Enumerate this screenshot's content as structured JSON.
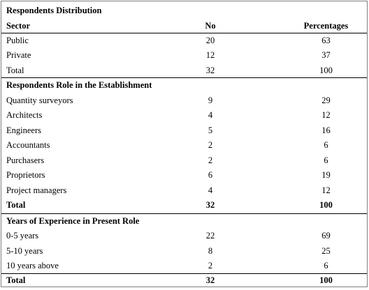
{
  "sections": [
    {
      "title": "Respondents Distribution",
      "header": {
        "col1": "Sector",
        "col2": "No",
        "col3": "Percentages"
      },
      "rows": [
        {
          "label": "Public",
          "no": "20",
          "pct": "63"
        },
        {
          "label": "Private",
          "no": "12",
          "pct": "37"
        },
        {
          "label": "Total",
          "no": "32",
          "pct": "100"
        }
      ]
    },
    {
      "title": "Respondents Role in the Establishment",
      "rows": [
        {
          "label": "Quantity surveyors",
          "no": "9",
          "pct": "29"
        },
        {
          "label": "Architects",
          "no": "4",
          "pct": "12"
        },
        {
          "label": "Engineers",
          "no": "5",
          "pct": "16"
        },
        {
          "label": "Accountants",
          "no": "2",
          "pct": "6"
        },
        {
          "label": "Purchasers",
          "no": "2",
          "pct": "6"
        },
        {
          "label": "Proprietors",
          "no": "6",
          "pct": "19"
        },
        {
          "label": "Project managers",
          "no": "4",
          "pct": "12"
        },
        {
          "label": "Total",
          "no": "32",
          "pct": "100"
        }
      ]
    },
    {
      "title": "Years of Experience in Present Role",
      "rows": [
        {
          "label": "0-5 years",
          "no": "22",
          "pct": "69"
        },
        {
          "label": "5-10 years",
          "no": "8",
          "pct": "25"
        },
        {
          "label": "10 years above",
          "no": "2",
          "pct": "6"
        },
        {
          "label": "Total",
          "no": "32",
          "pct": "100"
        }
      ]
    }
  ]
}
